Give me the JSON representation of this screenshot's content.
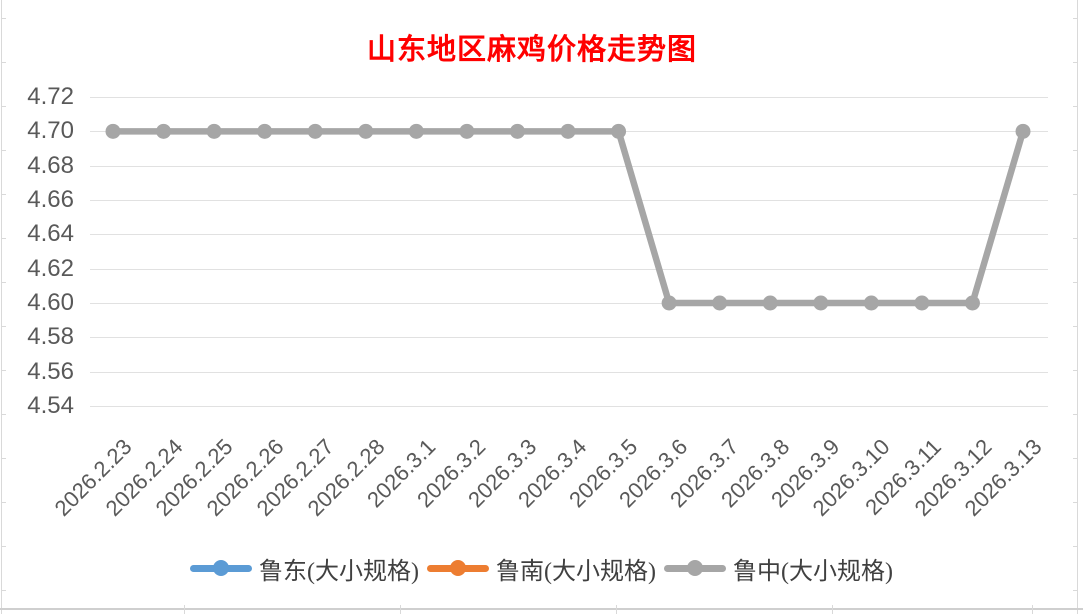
{
  "page": {
    "background": "#FFFFFF"
  },
  "chart_data": {
    "type": "line",
    "title": "山东地区麻鸡价格走势图",
    "title_color": "#FF0000",
    "axis_text_color": "#595959",
    "gridline_color": "#E1E1E1",
    "grid": "horizontal-only",
    "legend_position": "bottom",
    "xlabel": "",
    "ylabel": "",
    "ylim": [
      4.54,
      4.72
    ],
    "ytick_step": 0.02,
    "ytick_labels": [
      "4.72",
      "4.70",
      "4.68",
      "4.66",
      "4.64",
      "4.62",
      "4.60",
      "4.58",
      "4.56",
      "4.54"
    ],
    "categories": [
      "2026.2.23",
      "2026.2.24",
      "2026.2.25",
      "2026.2.26",
      "2026.2.27",
      "2026.2.28",
      "2026.3.1",
      "2026.3.2",
      "2026.3.3",
      "2026.3.4",
      "2026.3.5",
      "2026.3.6",
      "2026.3.7",
      "2026.3.8",
      "2026.3.9",
      "2026.3.10",
      "2026.3.11",
      "2026.3.12",
      "2026.3.13"
    ],
    "series": [
      {
        "name": "鲁东(大小规格)",
        "color": "#5B9BD5",
        "marker": "circle",
        "visible_in_plot": false,
        "values": null
      },
      {
        "name": "鲁南(大小规格)",
        "color": "#ED7D31",
        "marker": "circle",
        "visible_in_plot": false,
        "values": null
      },
      {
        "name": "鲁中(大小规格)",
        "color": "#A6A6A6",
        "marker": "circle",
        "visible_in_plot": true,
        "values": [
          4.7,
          4.7,
          4.7,
          4.7,
          4.7,
          4.7,
          4.7,
          4.7,
          4.7,
          4.7,
          4.7,
          4.6,
          4.6,
          4.6,
          4.6,
          4.6,
          4.6,
          4.6,
          4.7
        ]
      }
    ]
  }
}
